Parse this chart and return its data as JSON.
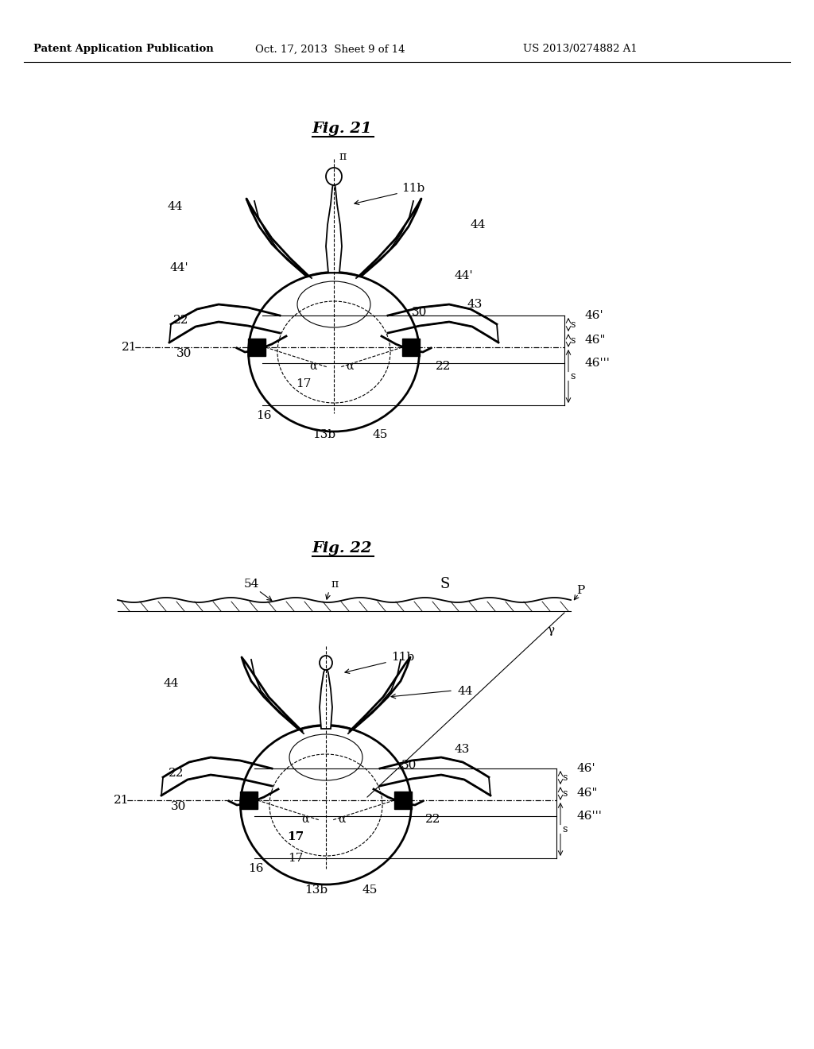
{
  "bg_color": "#ffffff",
  "header_left": "Patent Application Publication",
  "header_mid": "Oct. 17, 2013  Sheet 9 of 14",
  "header_right": "US 2013/0274882 A1",
  "fig21_title": "Fig. 21",
  "fig22_title": "Fig. 22",
  "label_fontsize": 11,
  "title_fontsize": 14,
  "line_color": "#000000"
}
